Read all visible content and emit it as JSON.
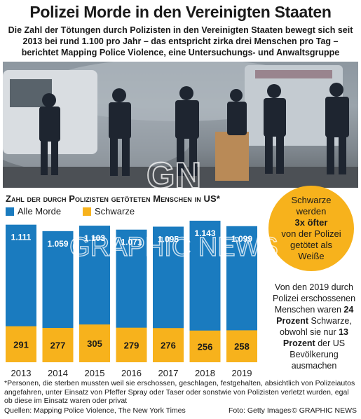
{
  "header": {
    "title": "Polizei Morde in den Vereinigten Staaten",
    "intro": "Die Zahl der Tötungen durch Polizisten in den Vereinigten Staaten bewegt sich seit 2013 bei rund 1.100 pro Jahr – das entspricht zirka drei Menschen pro Tag – berichtet Mapping Police Violence, eine Untersuchungs- und Anwaltsgruppe"
  },
  "chart_data": {
    "type": "bar",
    "title": "Zahl der durch Polizisten getöteten Menschen in US*",
    "categories": [
      "2013",
      "2014",
      "2015",
      "2016",
      "2017",
      "2018",
      "2019"
    ],
    "series": [
      {
        "name": "Alle Morde",
        "values": [
          1111,
          1059,
          1103,
          1071,
          1095,
          1143,
          1099
        ],
        "labels": [
          "1.111",
          "1.059",
          "1.103",
          "1.071",
          "1.095",
          "1.143",
          "1.099"
        ]
      },
      {
        "name": "Schwarze",
        "values": [
          291,
          277,
          305,
          279,
          276,
          256,
          258
        ],
        "labels": [
          "291",
          "277",
          "305",
          "279",
          "276",
          "256",
          "258"
        ]
      }
    ],
    "ylim": [
      0,
      1143
    ],
    "colors": {
      "alle": "#1a7bbf",
      "schwarze": "#f7b21c"
    },
    "grid": false,
    "legend_position": "top-left"
  },
  "callout": {
    "line1": "Schwarze",
    "line2": "werden",
    "bold": "3x öfter",
    "line4": "von der Polizei",
    "line5": "getötet als",
    "line6": "Weiße"
  },
  "note": {
    "a": "Von den 2019 durch Polizei erschossenen Menschen waren",
    "b": "24 Prozent",
    "c": "Schwarze, obwohl sie nur",
    "d": "13 Prozent",
    "e": "der US Bevölkerung ausmachen"
  },
  "footnote": "*Personen, die sterben mussten weil sie erschossen, geschlagen, festgehalten, absichtlich von Polizeiautos angefahren, unter Einsatz von Pfeffer Spray oder Taser oder sonstwie von Polizisten verletzt wurden, egal ob diese im Einsatz waren oder privat",
  "sources": {
    "quellen": "Quellen: Mapping Police Violence, The New York Times",
    "foto": "Foto: Getty Images",
    "copyright": "© GRAPHIC NEWS"
  },
  "watermark": {
    "text": "GRAPHIC NEWS",
    "mark": "GN"
  }
}
